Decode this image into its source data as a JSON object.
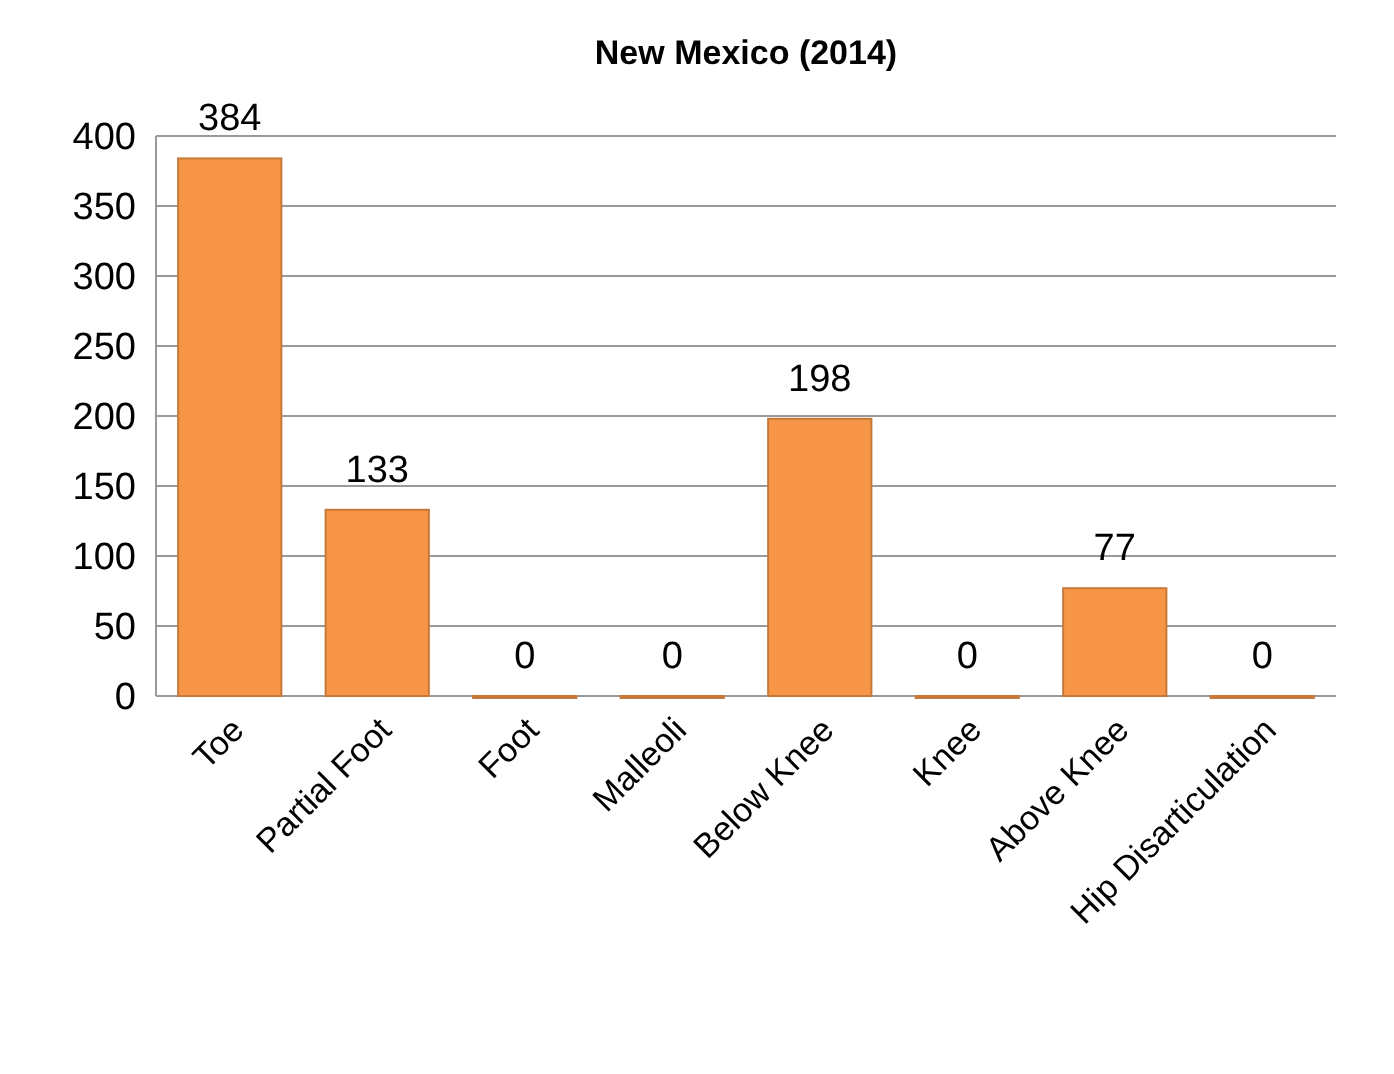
{
  "chart_data": {
    "type": "bar",
    "title": "New Mexico (2014)",
    "categories": [
      "Toe",
      "Partial Foot",
      "Foot",
      "Malleoli",
      "Below Knee",
      "Knee",
      "Above Knee",
      "Hip Disarticulation"
    ],
    "values": [
      384,
      133,
      0,
      0,
      198,
      0,
      77,
      0
    ],
    "color": "#f79646",
    "ylim": [
      0,
      400
    ],
    "yticks": [
      0,
      50,
      100,
      150,
      200,
      250,
      300,
      350,
      400
    ],
    "grid": "y",
    "data_labels": true
  }
}
